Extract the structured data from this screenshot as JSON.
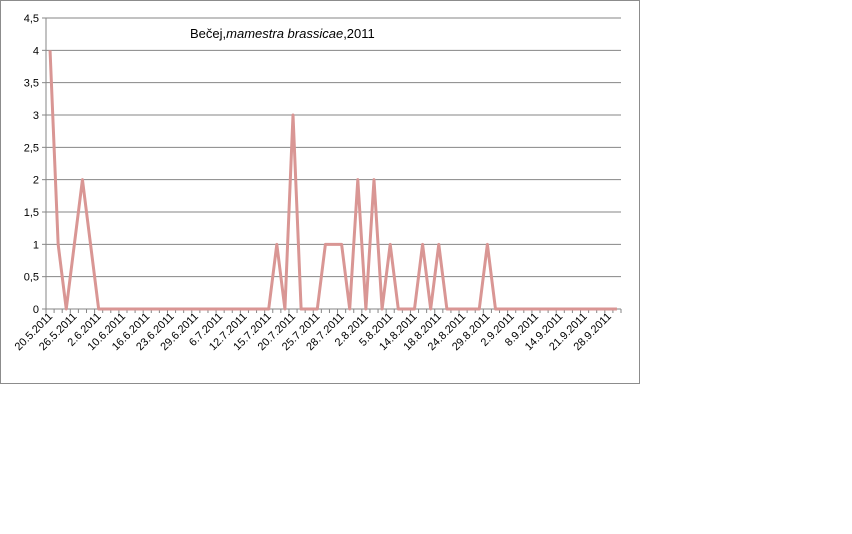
{
  "chart_data": {
    "type": "line",
    "title_parts": [
      "Bečej,",
      "mamestra brassicae",
      ",2011"
    ],
    "xlabel": "",
    "ylabel": "",
    "ylim": [
      0,
      4.5
    ],
    "y_ticks": [
      "0",
      "0,5",
      "1",
      "1,5",
      "2",
      "2,5",
      "3",
      "3,5",
      "4",
      "4,5"
    ],
    "grid": true,
    "legend": "none",
    "series_color": "#d99694",
    "x_tick_labels": [
      "20.5.2011",
      "26.5.2011",
      "2.6.2011",
      "10.6.2011",
      "16.6.2011",
      "23.6.2011",
      "29.6.2011",
      "6.7.2011",
      "12.7.2011",
      "15.7.2011",
      "20.7.2011",
      "25.7.2011",
      "28.7.2011",
      "2.8.2011",
      "5.8.2011",
      "14.8.2011",
      "18.8.2011",
      "24.8.2011",
      "29.8.2011",
      "2.9.2011",
      "8.9.2011",
      "14.9.2011",
      "21.9.2011",
      "28.9.2011"
    ],
    "values": [
      4,
      1,
      0,
      1,
      2,
      1,
      0,
      0,
      0,
      0,
      0,
      0,
      0,
      0,
      0,
      0,
      0,
      0,
      0,
      0,
      0,
      0,
      0,
      0,
      0,
      0,
      0,
      0,
      1,
      0,
      3,
      0,
      0,
      0,
      1,
      1,
      1,
      0,
      2,
      0,
      2,
      0,
      1,
      0,
      0,
      0,
      1,
      0,
      1,
      0,
      0,
      0,
      0,
      0,
      1,
      0,
      0,
      0,
      0,
      0,
      0,
      0,
      0,
      0,
      0,
      0,
      0,
      0,
      0,
      0,
      0
    ]
  }
}
